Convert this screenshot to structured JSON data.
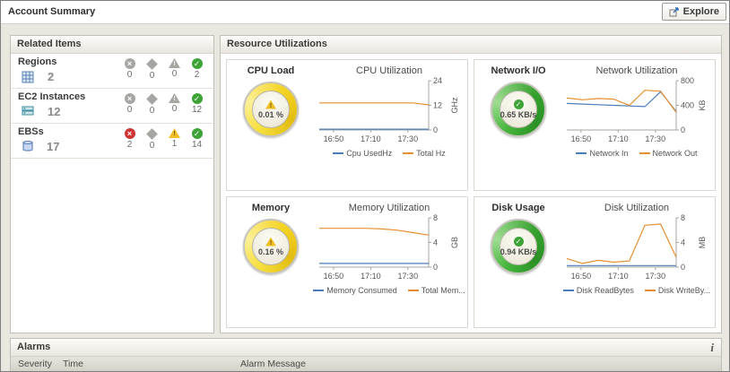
{
  "header": {
    "title": "Account Summary",
    "explore": "Explore"
  },
  "icons": {
    "fatal": "×",
    "warning": "!",
    "check": "✓",
    "info": "i"
  },
  "related": {
    "title": "Related Items",
    "rows": [
      {
        "name": "Regions",
        "count": "2",
        "statuses": [
          {
            "count": "0",
            "state": "state-gray"
          },
          {
            "count": "0",
            "state": "state-gray"
          },
          {
            "count": "0",
            "state": "state-gray"
          },
          {
            "count": "2",
            "state": "state-green"
          }
        ]
      },
      {
        "name": "EC2 Instances",
        "count": "12",
        "statuses": [
          {
            "count": "0",
            "state": "state-gray"
          },
          {
            "count": "0",
            "state": "state-gray"
          },
          {
            "count": "0",
            "state": "state-gray"
          },
          {
            "count": "12",
            "state": "state-green"
          }
        ]
      },
      {
        "name": "EBSs",
        "count": "17",
        "statuses": [
          {
            "count": "2",
            "state": "state-red"
          },
          {
            "count": "0",
            "state": "state-gray"
          },
          {
            "count": "1",
            "state": "state-yellow"
          },
          {
            "count": "14",
            "state": "state-green"
          }
        ]
      }
    ]
  },
  "resource": {
    "title": "Resource Utilizations",
    "panels": [
      {
        "gauge_title": "CPU Load",
        "gauge_value": "0.01 %",
        "gauge_state": "warning"
      },
      {
        "gauge_title": "Network I/O",
        "gauge_value": "0.65 KB/s",
        "gauge_state": "normal"
      },
      {
        "gauge_title": "Memory",
        "gauge_value": "0.16 %",
        "gauge_state": "warning"
      },
      {
        "gauge_title": "Disk Usage",
        "gauge_value": "0.94 KB/s",
        "gauge_state": "normal"
      }
    ]
  },
  "alarms": {
    "title": "Alarms",
    "columns": [
      "Severity",
      "Time",
      "Alarm Message"
    ]
  },
  "chart_data": [
    {
      "type": "line",
      "title": "CPU Utilization",
      "unit": "GHz",
      "ylim": [
        0,
        24
      ],
      "yticks": [
        0,
        12,
        24
      ],
      "xticks": [
        "16:50",
        "17:10",
        "17:30"
      ],
      "legend_position": "bottom",
      "grid": false,
      "series": [
        {
          "name": "Cpu UsedHz",
          "color": "#4a7ebb",
          "values": [
            0.4,
            0.4,
            0.4,
            0.4,
            0.4,
            0.4,
            0.4,
            0.4
          ]
        },
        {
          "name": "Total Hz",
          "color": "#e78f2e",
          "values": [
            13.2,
            13.2,
            13.2,
            13.2,
            13.2,
            13.2,
            13.2,
            12.2
          ]
        }
      ]
    },
    {
      "type": "line",
      "title": "Network Utilization",
      "unit": "KB",
      "ylim": [
        0,
        800
      ],
      "yticks": [
        0,
        400,
        800
      ],
      "xticks": [
        "16:50",
        "17:10",
        "17:30"
      ],
      "legend_position": "bottom",
      "grid": false,
      "series": [
        {
          "name": "Network In",
          "color": "#4a7ebb",
          "values": [
            430,
            420,
            410,
            400,
            390,
            380,
            620,
            300
          ]
        },
        {
          "name": "Network Out",
          "color": "#e78f2e",
          "values": [
            520,
            490,
            510,
            500,
            400,
            645,
            630,
            285
          ]
        }
      ]
    },
    {
      "type": "line",
      "title": "Memory Utilization",
      "unit": "GB",
      "ylim": [
        0,
        8
      ],
      "yticks": [
        0,
        4,
        8
      ],
      "xticks": [
        "16:50",
        "17:10",
        "17:30"
      ],
      "legend_position": "bottom",
      "grid": false,
      "series": [
        {
          "name": "Memory Consumed",
          "color": "#4a7ebb",
          "values": [
            0.6,
            0.6,
            0.6,
            0.6,
            0.6,
            0.6,
            0.6,
            0.6
          ]
        },
        {
          "name": "Total Mem...",
          "color": "#e78f2e",
          "values": [
            6.3,
            6.3,
            6.3,
            6.3,
            6.2,
            6.0,
            5.6,
            5.2
          ]
        }
      ]
    },
    {
      "type": "line",
      "title": "Disk Utilization",
      "unit": "MB",
      "ylim": [
        0,
        8
      ],
      "yticks": [
        0,
        4,
        8
      ],
      "xticks": [
        "16:50",
        "17:10",
        "17:30"
      ],
      "legend_position": "bottom",
      "grid": false,
      "series": [
        {
          "name": "Disk ReadBytes",
          "color": "#4a7ebb",
          "values": [
            0.25,
            0.25,
            0.25,
            0.25,
            0.25,
            0.25,
            0.25,
            0.25
          ]
        },
        {
          "name": "Disk WriteBy...",
          "color": "#e78f2e",
          "values": [
            1.4,
            0.6,
            1.1,
            0.8,
            1.0,
            6.8,
            7.0,
            1.6
          ]
        }
      ]
    }
  ]
}
